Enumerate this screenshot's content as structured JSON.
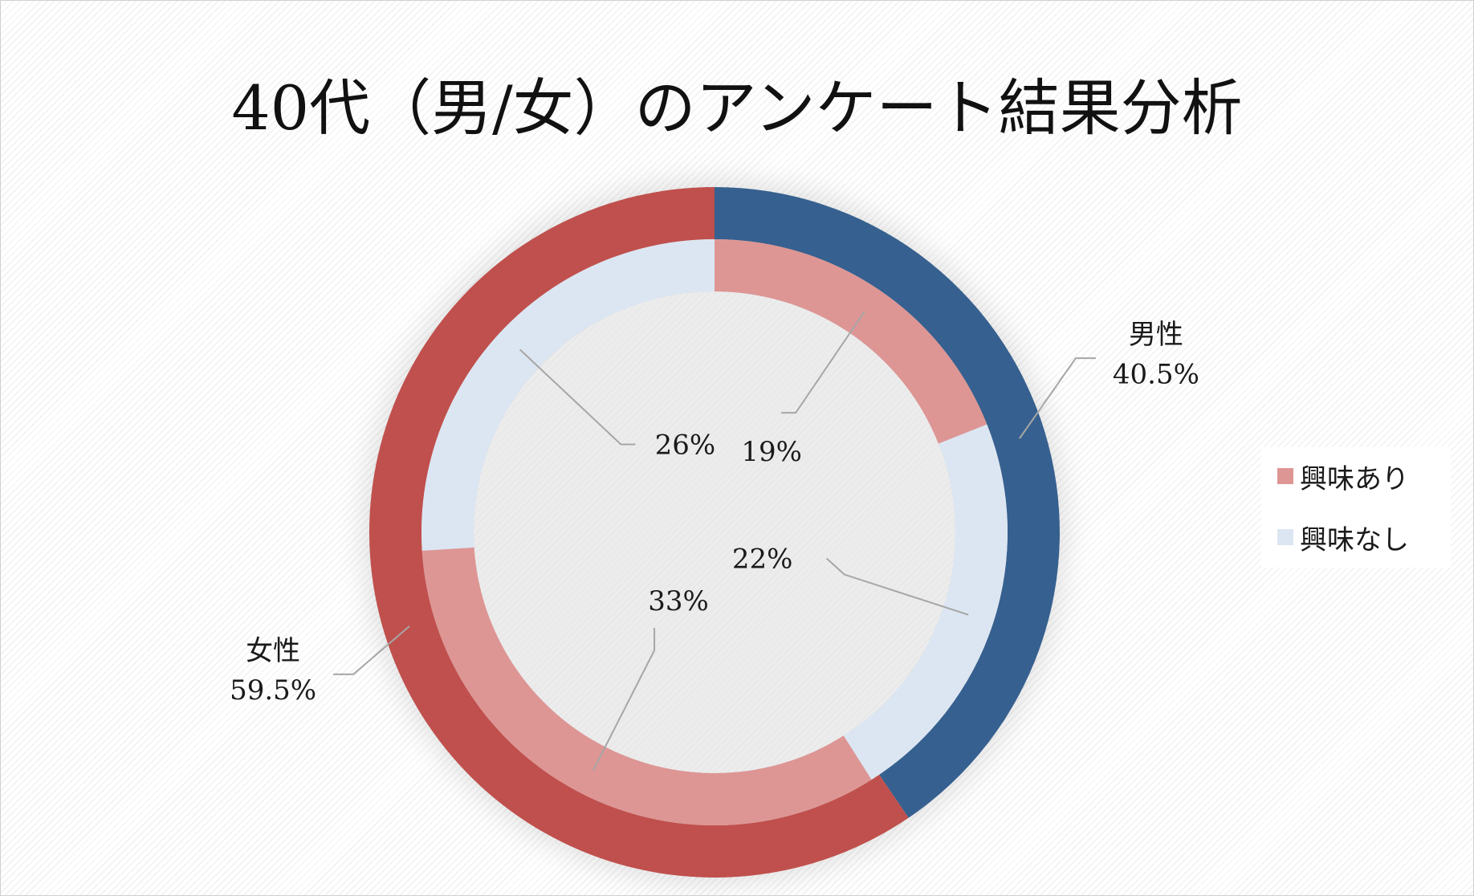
{
  "chart_data": {
    "type": "donut",
    "title": "40代（男/女）のアンケート結果分析",
    "outer_ring": {
      "slices": [
        {
          "label": "男性",
          "value": 40.5,
          "display": "40.5%",
          "color": "#36608f"
        },
        {
          "label": "女性",
          "value": 59.5,
          "display": "59.5%",
          "color": "#c0504d"
        }
      ]
    },
    "inner_ring": {
      "slices": [
        {
          "series": "興味あり",
          "value": 19,
          "display": "19%",
          "color": "#dd9694"
        },
        {
          "series": "興味なし",
          "value": 22,
          "display": "22%",
          "color": "#dce6f2"
        },
        {
          "series": "興味あり",
          "value": 33,
          "display": "33%",
          "color": "#dd9694"
        },
        {
          "series": "興味なし",
          "value": 26,
          "display": "26%",
          "color": "#dce6f2"
        }
      ]
    },
    "legend": {
      "placement": "right",
      "items": [
        {
          "label": "興味あり",
          "color": "#dd9694"
        },
        {
          "label": "興味なし",
          "color": "#dce6f2"
        }
      ]
    },
    "start_angle_deg": 0,
    "direction": "clockwise",
    "leader_line_color": "#a6a6a6"
  }
}
